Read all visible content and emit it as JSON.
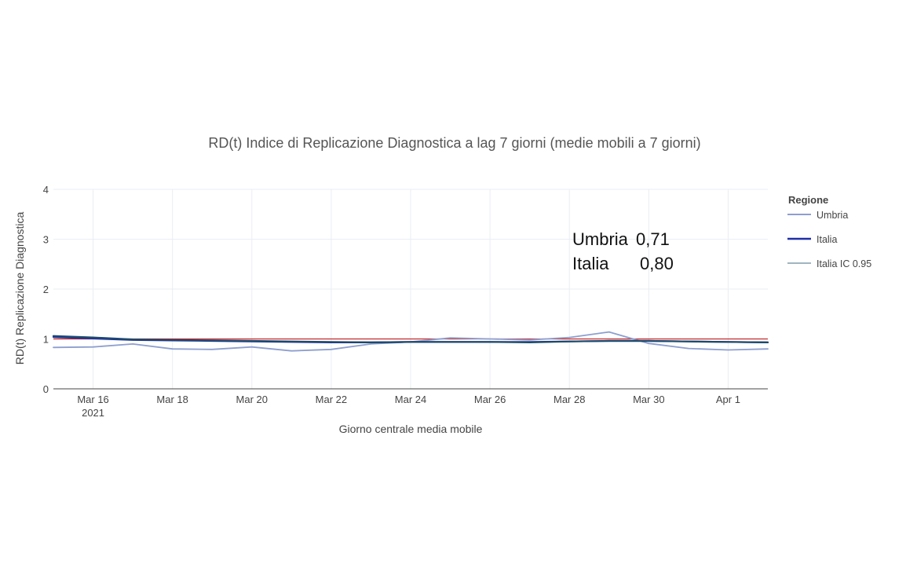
{
  "chart_data": {
    "type": "line",
    "title": "RD(t) Indice di Replicazione Diagnostica a lag 7 giorni (medie mobili a 7 giorni)",
    "xlabel": "Giorno centrale media mobile",
    "ylabel": "RD(t) Replicazione Diagnostica",
    "xlim": [
      "2021-03-15",
      "2021-04-02"
    ],
    "ylim": [
      0,
      4
    ],
    "y_ticks": [
      0,
      1,
      2,
      3,
      4
    ],
    "x_ticks": [
      {
        "date": "2021-03-16",
        "label": "Mar 16",
        "sublabel": "2021"
      },
      {
        "date": "2021-03-18",
        "label": "Mar 18",
        "sublabel": ""
      },
      {
        "date": "2021-03-20",
        "label": "Mar 20",
        "sublabel": ""
      },
      {
        "date": "2021-03-22",
        "label": "Mar 22",
        "sublabel": ""
      },
      {
        "date": "2021-03-24",
        "label": "Mar 24",
        "sublabel": ""
      },
      {
        "date": "2021-03-26",
        "label": "Mar 26",
        "sublabel": ""
      },
      {
        "date": "2021-03-28",
        "label": "Mar 28",
        "sublabel": ""
      },
      {
        "date": "2021-03-30",
        "label": "Mar 30",
        "sublabel": ""
      },
      {
        "date": "2021-04-01",
        "label": "Apr 1",
        "sublabel": ""
      }
    ],
    "grid": true,
    "legend": {
      "title": "Regione",
      "position": "right"
    },
    "x": [
      "2021-03-15",
      "2021-03-16",
      "2021-03-17",
      "2021-03-18",
      "2021-03-19",
      "2021-03-20",
      "2021-03-21",
      "2021-03-22",
      "2021-03-23",
      "2021-03-24",
      "2021-03-25",
      "2021-03-26",
      "2021-03-27",
      "2021-03-28",
      "2021-03-29",
      "2021-03-30",
      "2021-03-31",
      "2021-04-01",
      "2021-04-02"
    ],
    "series": [
      {
        "name": "Umbria",
        "color": "#8e9fcf",
        "width": 1.8,
        "values": [
          0.83,
          0.84,
          0.9,
          0.8,
          0.79,
          0.84,
          0.76,
          0.79,
          0.9,
          0.94,
          1.02,
          1.0,
          0.98,
          1.03,
          1.14,
          0.91,
          0.81,
          0.78,
          0.8
        ]
      },
      {
        "name": "Italia",
        "color": "#1f2fa8",
        "width": 2.2,
        "values": [
          1.04,
          1.01,
          0.98,
          0.97,
          0.96,
          0.95,
          0.94,
          0.93,
          0.93,
          0.94,
          0.94,
          0.94,
          0.94,
          0.95,
          0.96,
          0.96,
          0.95,
          0.94,
          0.93
        ]
      },
      {
        "name": "Italia IC 0.95",
        "color": "#1d4a6a",
        "width": 2.2,
        "values": [
          1.06,
          1.03,
          0.99,
          0.98,
          0.97,
          0.96,
          0.95,
          0.94,
          0.93,
          0.94,
          0.94,
          0.94,
          0.93,
          0.95,
          0.96,
          0.96,
          0.95,
          0.94,
          0.93
        ]
      }
    ],
    "reference_line": {
      "y": 1,
      "color": "#c62828"
    },
    "annotation": {
      "rows": [
        {
          "label": "Umbria",
          "value": "0,71"
        },
        {
          "label": "Italia",
          "value": "0,80"
        }
      ]
    }
  }
}
